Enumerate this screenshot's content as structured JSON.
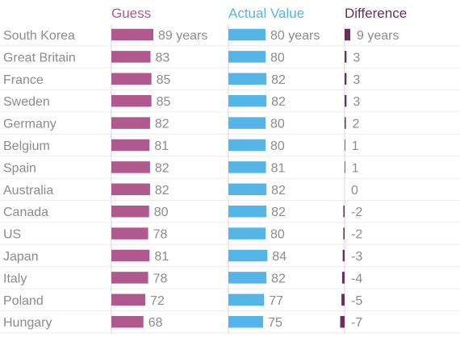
{
  "chart_data": {
    "type": "bar",
    "categories": [
      "South Korea",
      "Great Britain",
      "France",
      "Sweden",
      "Germany",
      "Belgium",
      "Spain",
      "Australia",
      "Canada",
      "US",
      "Japan",
      "Italy",
      "Poland",
      "Hungary"
    ],
    "series": [
      {
        "name": "Guess",
        "values": [
          89,
          83,
          85,
          85,
          82,
          81,
          82,
          82,
          80,
          78,
          81,
          78,
          72,
          68
        ],
        "color": "#b0598f"
      },
      {
        "name": "Actual Value",
        "values": [
          80,
          80,
          82,
          82,
          80,
          80,
          81,
          82,
          82,
          80,
          84,
          82,
          77,
          75
        ],
        "color": "#55b5e7"
      },
      {
        "name": "Difference",
        "values": [
          9,
          3,
          3,
          3,
          2,
          1,
          1,
          0,
          -2,
          -2,
          -3,
          -4,
          -5,
          -7
        ],
        "color": "#6b2d5c"
      }
    ],
    "unit_suffix": " years",
    "axis_color": "#d9d9d9",
    "label_color": "#8c8c8c",
    "grid_color": "#ececec"
  }
}
